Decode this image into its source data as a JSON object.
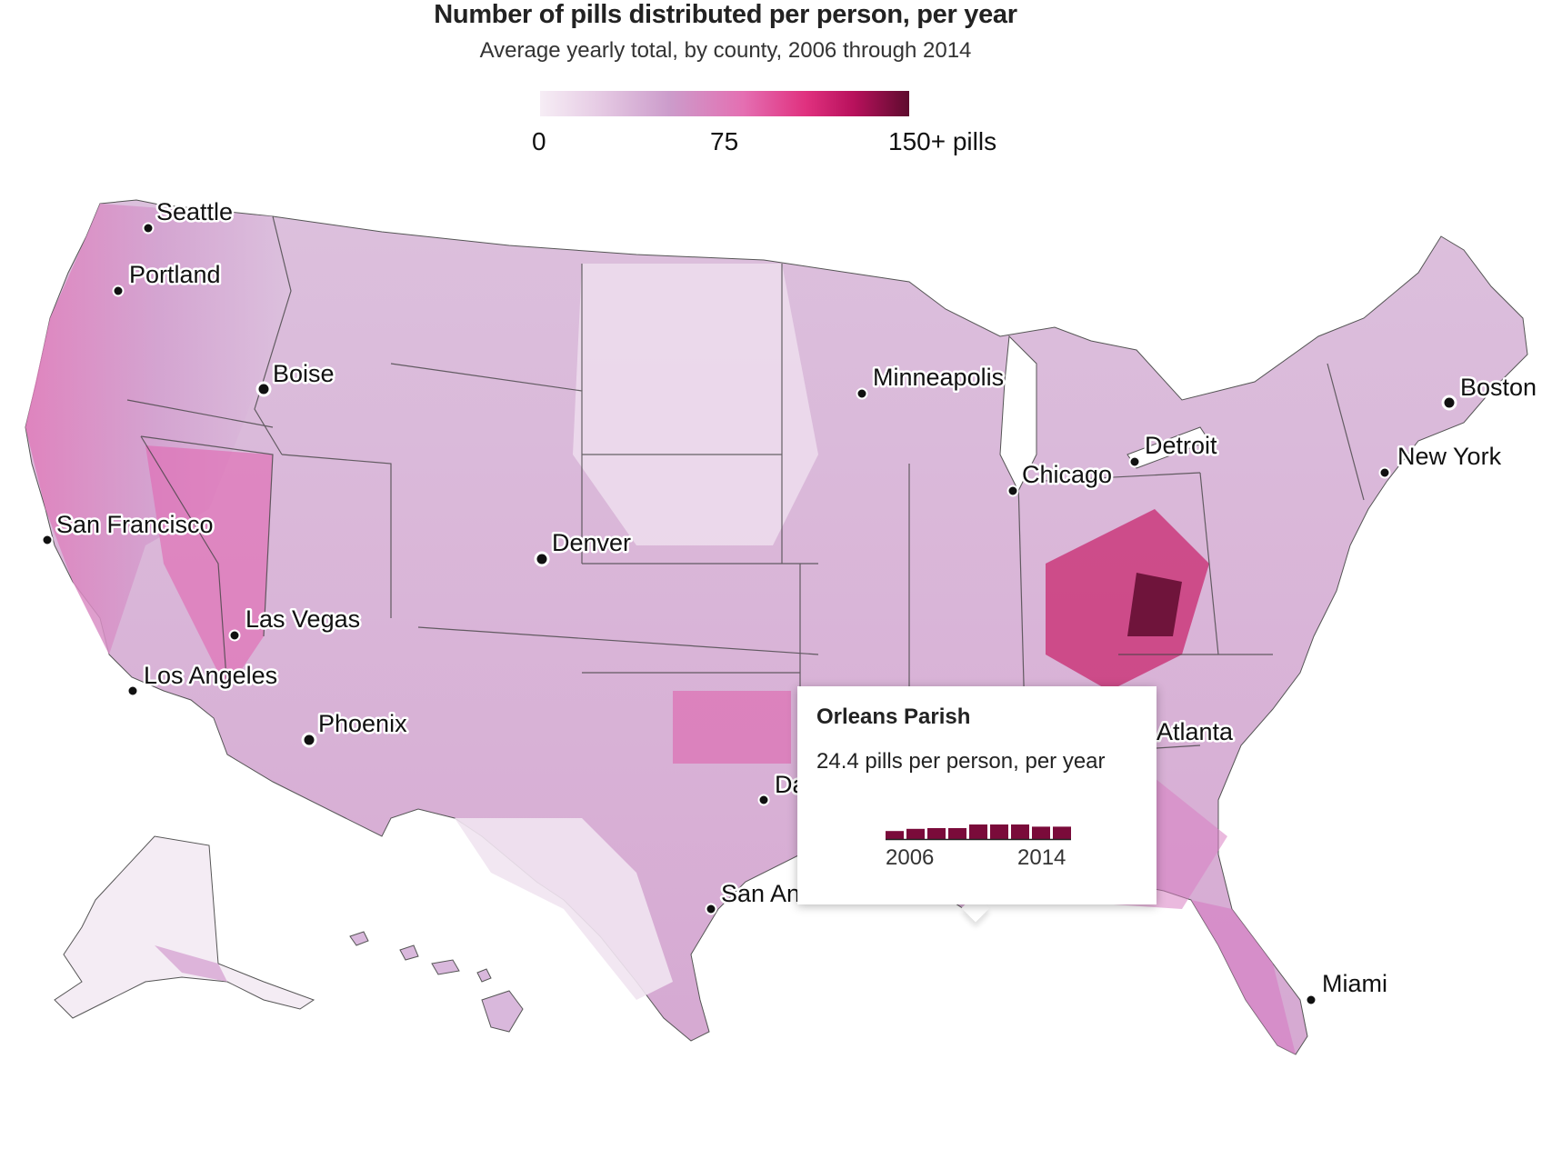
{
  "title": "Number of pills distributed per person, per year",
  "subtitle": "Average yearly total, by county, 2006 through 2014",
  "legend": {
    "min_label": "0",
    "mid_label": "75",
    "max_label": "150+ pills",
    "color_stops": [
      "#f6edf5",
      "#e7cde5",
      "#cc9ccb",
      "#e46fb2",
      "#e0317f",
      "#b8115c",
      "#5e0b2e"
    ]
  },
  "cities": [
    {
      "name": "Seattle"
    },
    {
      "name": "Portland"
    },
    {
      "name": "Boise"
    },
    {
      "name": "San Francisco"
    },
    {
      "name": "Las Vegas"
    },
    {
      "name": "Los Angeles"
    },
    {
      "name": "Phoenix"
    },
    {
      "name": "Denver"
    },
    {
      "name": "Minneapolis"
    },
    {
      "name": "Chicago"
    },
    {
      "name": "Detroit"
    },
    {
      "name": "Boston"
    },
    {
      "name": "New York"
    },
    {
      "name": "Atlanta"
    },
    {
      "name": "Dallas"
    },
    {
      "name": "San Antonio"
    },
    {
      "name": "Miami"
    }
  ],
  "tooltip": {
    "county": "Orleans Parish",
    "value_text": "24.4 pills per person, per year",
    "start_year": "2006",
    "end_year": "2014",
    "yearly_relative_values": [
      0.55,
      0.7,
      0.75,
      0.75,
      1.0,
      1.0,
      1.0,
      0.85,
      0.85
    ],
    "bar_color": "#7a0b3a"
  }
}
